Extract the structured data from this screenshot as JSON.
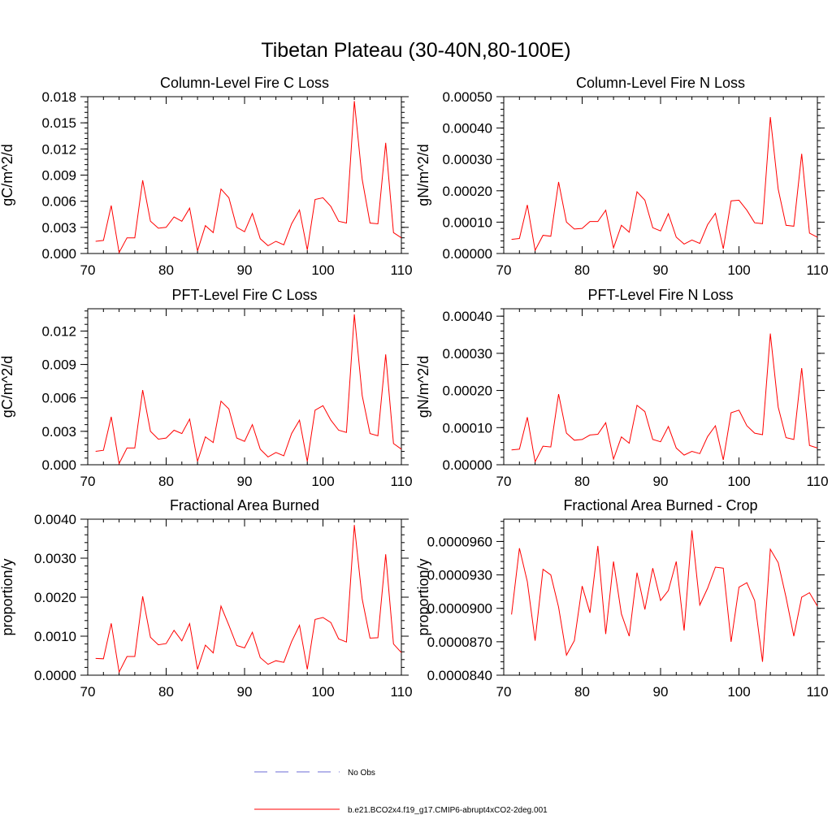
{
  "figure_title": "Tibetan Plateau (30-40N,80-100E)",
  "colors": {
    "series": "#ff0000",
    "obs": "#6b6bd6",
    "axis": "#000000"
  },
  "legend": {
    "obs_label": "No Obs",
    "model_label": "b.e21.BCO2x4.f19_g17.CMIP6-abrupt4xCO2-2deg.001"
  },
  "chart_data": [
    {
      "type": "line",
      "title": "Column-Level Fire C Loss",
      "xlabel": "",
      "ylabel": "gC/m^2/d",
      "xlim": [
        70,
        110
      ],
      "ylim": [
        0,
        0.018
      ],
      "xticks": [
        70,
        80,
        90,
        100,
        110
      ],
      "xtick_labels": [
        "70",
        "80",
        "90",
        "100",
        "110"
      ],
      "yticks": [
        0,
        0.003,
        0.006,
        0.009,
        0.012,
        0.015,
        0.018
      ],
      "ytick_labels": [
        "0.000",
        "0.003",
        "0.006",
        "0.009",
        "0.012",
        "0.015",
        "0.018"
      ],
      "series": [
        {
          "name": "b.e21.BCO2x4.f19_g17.CMIP6-abrupt4xCO2-2deg.001",
          "x_start": 71,
          "values": [
            0.0014,
            0.0015,
            0.0055,
            0.0001,
            0.0018,
            0.0018,
            0.0084,
            0.0037,
            0.0029,
            0.003,
            0.0042,
            0.0037,
            0.0052,
            0.0003,
            0.0032,
            0.0024,
            0.0074,
            0.0064,
            0.003,
            0.0025,
            0.0046,
            0.0017,
            0.0009,
            0.0014,
            0.001,
            0.0034,
            0.005,
            0.0004,
            0.0062,
            0.0064,
            0.0054,
            0.0037,
            0.0035,
            0.0175,
            0.0085,
            0.0035,
            0.0034,
            0.0127,
            0.0024,
            0.0018
          ]
        }
      ]
    },
    {
      "type": "line",
      "title": "Column-Level Fire N Loss",
      "xlabel": "",
      "ylabel": "gN/m^2/d",
      "xlim": [
        70,
        110
      ],
      "ylim": [
        0,
        0.0005
      ],
      "xticks": [
        70,
        80,
        90,
        100,
        110
      ],
      "xtick_labels": [
        "70",
        "80",
        "90",
        "100",
        "110"
      ],
      "yticks": [
        0,
        0.0001,
        0.0002,
        0.0003,
        0.0004,
        0.0005
      ],
      "ytick_labels": [
        "0.00000",
        "0.00010",
        "0.00020",
        "0.00030",
        "0.00040",
        "0.00050"
      ],
      "series": [
        {
          "name": "b.e21.BCO2x4.f19_g17.CMIP6-abrupt4xCO2-2deg.001",
          "x_start": 71,
          "values": [
            4.5e-05,
            4.8e-05,
            0.000155,
            1e-05,
            5.8e-05,
            5.5e-05,
            0.000228,
            0.0001,
            7.8e-05,
            8e-05,
            0.000102,
            0.000102,
            0.000138,
            1.8e-05,
            9e-05,
            6.8e-05,
            0.000197,
            0.00017,
            8.2e-05,
            7.2e-05,
            0.000127,
            5.2e-05,
            3e-05,
            4.3e-05,
            3.2e-05,
            9.2e-05,
            0.000128,
            1.5e-05,
            0.000168,
            0.00017,
            0.000138,
            9.8e-05,
            9.5e-05,
            0.000435,
            0.000205,
            9e-05,
            8.7e-05,
            0.000318,
            6.5e-05,
            5.2e-05
          ]
        }
      ]
    },
    {
      "type": "line",
      "title": "PFT-Level Fire C Loss",
      "xlabel": "",
      "ylabel": "gC/m^2/d",
      "xlim": [
        70,
        110
      ],
      "ylim": [
        0,
        0.014
      ],
      "xticks": [
        70,
        80,
        90,
        100,
        110
      ],
      "xtick_labels": [
        "70",
        "80",
        "90",
        "100",
        "110"
      ],
      "yticks": [
        0,
        0.003,
        0.006,
        0.009,
        0.012
      ],
      "ytick_labels": [
        "0.000",
        "0.003",
        "0.006",
        "0.009",
        "0.012"
      ],
      "series": [
        {
          "name": "b.e21.BCO2x4.f19_g17.CMIP6-abrupt4xCO2-2deg.001",
          "x_start": 71,
          "values": [
            0.0012,
            0.0013,
            0.0043,
            0.0001,
            0.0015,
            0.0015,
            0.0067,
            0.003,
            0.0023,
            0.0024,
            0.0031,
            0.0028,
            0.0041,
            0.0003,
            0.0025,
            0.002,
            0.0057,
            0.005,
            0.0024,
            0.0021,
            0.0036,
            0.0014,
            0.0007,
            0.0011,
            0.0008,
            0.0028,
            0.004,
            0.0003,
            0.0049,
            0.0053,
            0.004,
            0.0031,
            0.0029,
            0.0135,
            0.0062,
            0.0028,
            0.0026,
            0.0099,
            0.0019,
            0.0014
          ]
        }
      ]
    },
    {
      "type": "line",
      "title": "PFT-Level Fire N Loss",
      "xlabel": "",
      "ylabel": "gN/m^2/d",
      "xlim": [
        70,
        110
      ],
      "ylim": [
        0,
        0.00042
      ],
      "xticks": [
        70,
        80,
        90,
        100,
        110
      ],
      "xtick_labels": [
        "70",
        "80",
        "90",
        "100",
        "110"
      ],
      "yticks": [
        0,
        0.0001,
        0.0002,
        0.0003,
        0.0004
      ],
      "ytick_labels": [
        "0.00000",
        "0.00010",
        "0.00020",
        "0.00030",
        "0.00040"
      ],
      "series": [
        {
          "name": "b.e21.BCO2x4.f19_g17.CMIP6-abrupt4xCO2-2deg.001",
          "x_start": 71,
          "values": [
            4e-05,
            4.2e-05,
            0.000128,
            8e-06,
            5e-05,
            4.8e-05,
            0.00019,
            8.5e-05,
            6.6e-05,
            6.8e-05,
            8e-05,
            8.2e-05,
            0.000113,
            1.5e-05,
            7.5e-05,
            5.8e-05,
            0.00016,
            0.000143,
            6.8e-05,
            6.2e-05,
            0.000103,
            4.5e-05,
            2.6e-05,
            3.6e-05,
            3e-05,
            7.6e-05,
            0.000105,
            1.3e-05,
            0.00014,
            0.000147,
            0.000105,
            8.5e-05,
            8.1e-05,
            0.000353,
            0.000155,
            7.3e-05,
            6.8e-05,
            0.00026,
            5.2e-05,
            4.5e-05
          ]
        }
      ]
    },
    {
      "type": "line",
      "title": "Fractional Area Burned",
      "xlabel": "",
      "ylabel": "proportion/y",
      "xlim": [
        70,
        110
      ],
      "ylim": [
        0,
        0.004
      ],
      "xticks": [
        70,
        80,
        90,
        100,
        110
      ],
      "xtick_labels": [
        "70",
        "80",
        "90",
        "100",
        "110"
      ],
      "yticks": [
        0,
        0.001,
        0.002,
        0.003,
        0.004
      ],
      "ytick_labels": [
        "0.0000",
        "0.0010",
        "0.0020",
        "0.0030",
        "0.0040"
      ],
      "series": [
        {
          "name": "b.e21.BCO2x4.f19_g17.CMIP6-abrupt4xCO2-2deg.001",
          "x_start": 71,
          "values": [
            0.00043,
            0.00042,
            0.00133,
            8e-05,
            0.00048,
            0.00048,
            0.00202,
            0.00097,
            0.00078,
            0.00081,
            0.00115,
            0.00088,
            0.00132,
            0.00015,
            0.00077,
            0.00057,
            0.00177,
            0.00128,
            0.00076,
            0.0007,
            0.0011,
            0.00045,
            0.00028,
            0.00037,
            0.00033,
            0.00086,
            0.00128,
            0.00015,
            0.00143,
            0.00148,
            0.00135,
            0.00093,
            0.00085,
            0.00385,
            0.00195,
            0.00095,
            0.00096,
            0.0031,
            0.0008,
            0.00058
          ]
        }
      ]
    },
    {
      "type": "line",
      "title": "Fractional Area Burned - Crop",
      "xlabel": "",
      "ylabel": "proportion/y",
      "xlim": [
        70,
        110
      ],
      "ylim": [
        8.4e-05,
        9.8e-05
      ],
      "xticks": [
        70,
        80,
        90,
        100,
        110
      ],
      "xtick_labels": [
        "70",
        "80",
        "90",
        "100",
        "110"
      ],
      "yticks": [
        8.4e-05,
        8.7e-05,
        9e-05,
        9.3e-05,
        9.6e-05
      ],
      "ytick_labels": [
        "0.0000840",
        "0.0000870",
        "0.0000900",
        "0.0000930",
        "0.0000960"
      ],
      "series": [
        {
          "name": "b.e21.BCO2x4.f19_g17.CMIP6-abrupt4xCO2-2deg.001",
          "x_start": 71,
          "values": [
            8.945e-05,
            9.54e-05,
            9.24e-05,
            8.71e-05,
            9.35e-05,
            9.3e-05,
            9.01e-05,
            8.58e-05,
            8.71e-05,
            9.2e-05,
            8.96e-05,
            9.56e-05,
            8.77e-05,
            9.42e-05,
            8.95e-05,
            8.75e-05,
            9.32e-05,
            8.99e-05,
            9.36e-05,
            9.07e-05,
            9.16e-05,
            9.42e-05,
            8.8e-05,
            9.7e-05,
            9.03e-05,
            9.18e-05,
            9.37e-05,
            9.36e-05,
            8.7e-05,
            9.19e-05,
            9.23e-05,
            9.07e-05,
            8.52e-05,
            9.53e-05,
            9.41e-05,
            9.1e-05,
            8.75e-05,
            9.1e-05,
            9.14e-05,
            9.02e-05
          ]
        }
      ]
    }
  ]
}
